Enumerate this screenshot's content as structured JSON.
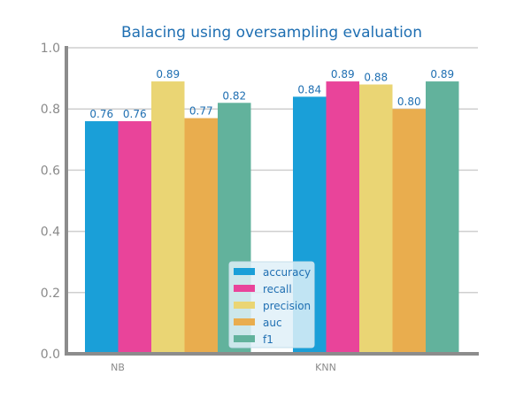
{
  "chart_data": {
    "type": "bar",
    "title": "Balacing using oversampling evaluation",
    "categories": [
      "NB",
      "KNN"
    ],
    "series": [
      {
        "name": "accuracy",
        "values": [
          0.76,
          0.84
        ],
        "color": "#1a9fd8"
      },
      {
        "name": "recall",
        "values": [
          0.76,
          0.89
        ],
        "color": "#e9449a"
      },
      {
        "name": "precision",
        "values": [
          0.89,
          0.88
        ],
        "color": "#ead574"
      },
      {
        "name": "auc",
        "values": [
          0.77,
          0.8
        ],
        "color": "#e9ad4e"
      },
      {
        "name": "f1",
        "values": [
          0.82,
          0.89
        ],
        "color": "#62b29c"
      }
    ],
    "data_labels": [
      [
        "0.76",
        "0.76",
        "0.89",
        "0.77",
        "0.82"
      ],
      [
        "0.84",
        "0.89",
        "0.88",
        "0.80",
        "0.89"
      ]
    ],
    "yticks": [
      "0.0",
      "0.2",
      "0.4",
      "0.6",
      "0.8",
      "1.0"
    ],
    "ylim": [
      0,
      1
    ],
    "grid": true,
    "legend_position": "bottom-center",
    "xlabel": "",
    "ylabel": ""
  }
}
